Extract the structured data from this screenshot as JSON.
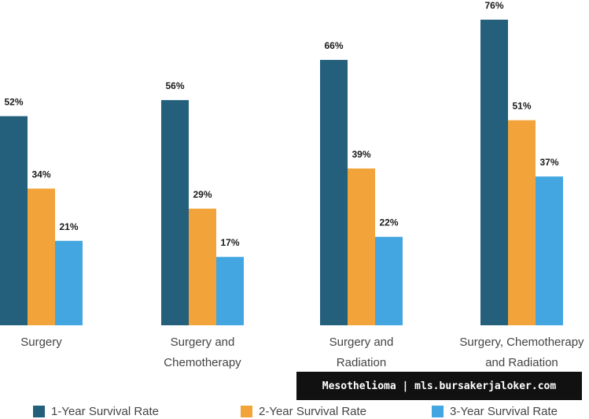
{
  "chart_data": {
    "type": "bar",
    "categories": [
      [
        "Surgery"
      ],
      [
        "Surgery and",
        "Chemotherapy"
      ],
      [
        "Surgery and",
        "Radiation"
      ],
      [
        "Surgery, Chemotherapy",
        "and Radiation"
      ]
    ],
    "series": [
      {
        "name": "1-Year Survival Rate",
        "color": "#245f7c",
        "values": [
          52,
          56,
          66,
          76
        ]
      },
      {
        "name": "2-Year Survival Rate",
        "color": "#f2a43a",
        "values": [
          34,
          29,
          39,
          51
        ]
      },
      {
        "name": "3-Year Survival Rate",
        "color": "#43a6e0",
        "values": [
          21,
          17,
          22,
          37
        ]
      }
    ],
    "value_suffix": "%",
    "ylim": [
      0,
      76
    ],
    "legend_position": "bottom"
  },
  "watermark": {
    "text": "Mesothelioma | mls.bursakerjaloker.com"
  }
}
